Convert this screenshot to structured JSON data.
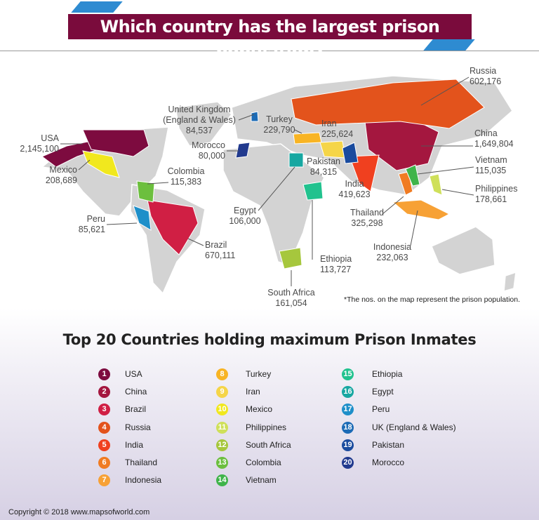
{
  "title": "Which country has the largest prison population?",
  "map_labels": [
    {
      "name": "Russia",
      "value": "602,176"
    },
    {
      "name": "USA",
      "value": "2,145,100"
    },
    {
      "name": "United Kingdom (England & Wales)",
      "value": "84,537"
    },
    {
      "name": "Turkey",
      "value": "229,790"
    },
    {
      "name": "Iran",
      "value": "225,624"
    },
    {
      "name": "Morocco",
      "value": "80,000"
    },
    {
      "name": "China",
      "value": "1,649,804"
    },
    {
      "name": "Mexico",
      "value": "208,689"
    },
    {
      "name": "Colombia",
      "value": "115,383"
    },
    {
      "name": "Pakistan",
      "value": "84,315"
    },
    {
      "name": "Vietnam",
      "value": "115,035"
    },
    {
      "name": "India",
      "value": "419,623"
    },
    {
      "name": "Philippines",
      "value": "178,661"
    },
    {
      "name": "Egypt",
      "value": "106,000"
    },
    {
      "name": "Thailand",
      "value": "325,298"
    },
    {
      "name": "Peru",
      "value": "85,621"
    },
    {
      "name": "Brazil",
      "value": "670,111"
    },
    {
      "name": "Indonesia",
      "value": "232,063"
    },
    {
      "name": "Ethiopia",
      "value": "113,727"
    },
    {
      "name": "South Africa",
      "value": "161,054"
    }
  ],
  "note": "*The nos. on the map represent the prison population.",
  "list_title": "Top 20 Countries holding maximum Prison Inmates",
  "ranking": [
    {
      "rank": 1,
      "country": "USA",
      "color": "#7d0b3f"
    },
    {
      "rank": 2,
      "country": "China",
      "color": "#a4173f"
    },
    {
      "rank": 3,
      "country": "Brazil",
      "color": "#d01f44"
    },
    {
      "rank": 4,
      "country": "Russia",
      "color": "#e3531c"
    },
    {
      "rank": 5,
      "country": "India",
      "color": "#f0401f"
    },
    {
      "rank": 6,
      "country": "Thailand",
      "color": "#f07b22"
    },
    {
      "rank": 7,
      "country": "Indonesia",
      "color": "#f7a135"
    },
    {
      "rank": 8,
      "country": "Turkey",
      "color": "#f8b424"
    },
    {
      "rank": 9,
      "country": "Iran",
      "color": "#f5d548"
    },
    {
      "rank": 10,
      "country": "Mexico",
      "color": "#f1e81e"
    },
    {
      "rank": 11,
      "country": "Philippines",
      "color": "#cfe05a"
    },
    {
      "rank": 12,
      "country": "South Africa",
      "color": "#a6c73d"
    },
    {
      "rank": 13,
      "country": "Colombia",
      "color": "#6cbf3e"
    },
    {
      "rank": 14,
      "country": "Vietnam",
      "color": "#3fb44a"
    },
    {
      "rank": 15,
      "country": "Ethiopia",
      "color": "#21c28e"
    },
    {
      "rank": 16,
      "country": "Egypt",
      "color": "#17a7a1"
    },
    {
      "rank": 17,
      "country": "Peru",
      "color": "#1e8fc9"
    },
    {
      "rank": 18,
      "country": "UK (England & Wales)",
      "color": "#1c6bb6"
    },
    {
      "rank": 19,
      "country": "Pakistan",
      "color": "#1a4b9e"
    },
    {
      "rank": 20,
      "country": "Morocco",
      "color": "#213a8e"
    }
  ],
  "footer": "Copyright © 2018 www.mapsofworld.com"
}
